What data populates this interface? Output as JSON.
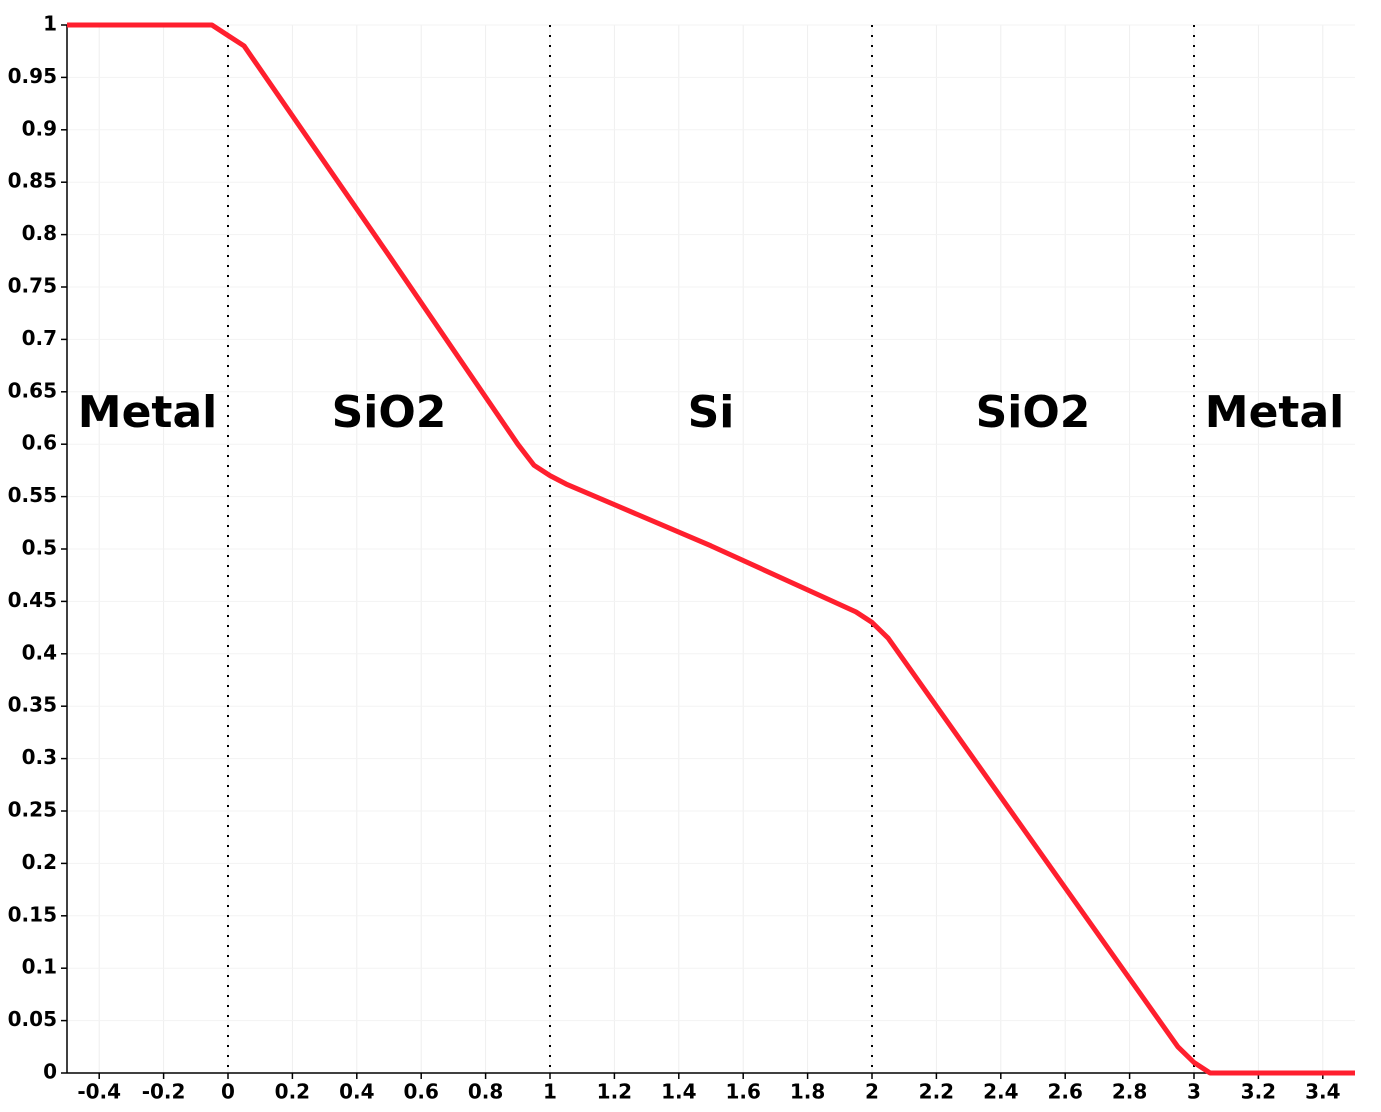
{
  "chart_data": {
    "type": "line",
    "x": [
      -0.5,
      -0.05,
      0,
      0.05,
      0.5,
      0.9,
      0.95,
      1,
      1.05,
      1.5,
      1.95,
      2,
      2.05,
      2.5,
      2.95,
      3,
      3.05,
      3.5
    ],
    "series": [
      {
        "color": "#ff1f2e",
        "values": [
          1,
          1,
          0.99,
          0.98,
          0.78,
          0.6,
          0.58,
          0.57,
          0.562,
          0.503,
          0.44,
          0.43,
          0.415,
          0.22,
          0.025,
          0.01,
          0,
          0
        ]
      }
    ],
    "xlim": [
      -0.5,
      3.5
    ],
    "xticks": [
      -0.4,
      -0.2,
      0,
      0.2,
      0.4,
      0.6,
      0.8,
      1,
      1.2,
      1.4,
      1.6,
      1.8,
      2,
      2.2,
      2.4,
      2.6,
      2.8,
      3,
      3.2,
      3.4
    ],
    "ylim": [
      0,
      1
    ],
    "yticks": [
      0,
      0.05,
      0.1,
      0.15,
      0.2,
      0.25,
      0.3,
      0.35,
      0.4,
      0.45,
      0.5,
      0.55,
      0.6,
      0.65,
      0.7,
      0.75,
      0.8,
      0.85,
      0.9,
      0.95,
      1
    ],
    "grid": true,
    "boundaries": [
      0,
      1,
      2,
      3
    ],
    "regions": [
      "Metal",
      "SiO2",
      "Si",
      "SiO2",
      "Metal"
    ]
  }
}
